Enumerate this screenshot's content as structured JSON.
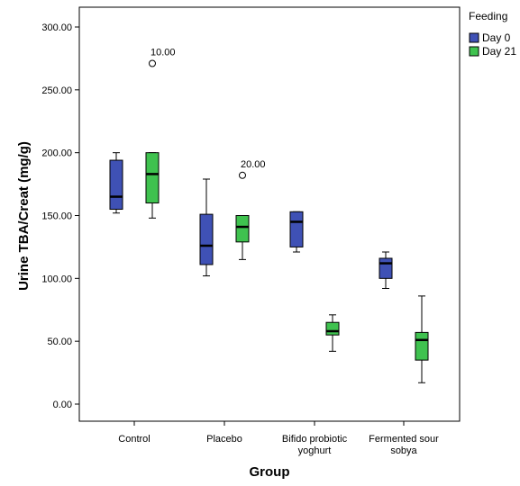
{
  "chart_data": {
    "type": "boxplot",
    "xlabel": "Group",
    "ylabel": "Urine TBA/Creat (mg/g)",
    "ylim": [
      -20,
      320
    ],
    "yticks": [
      "0.00",
      "50.00",
      "100.00",
      "150.00",
      "200.00",
      "250.00",
      "300.00"
    ],
    "ytick_values": [
      0,
      50,
      100,
      150,
      200,
      250,
      300
    ],
    "categories": [
      [
        "Control"
      ],
      [
        "Placebo"
      ],
      [
        "Bifido probiotic",
        "yoghurt"
      ],
      [
        "Fermented sour",
        "sobya"
      ]
    ],
    "legend": {
      "title": "Feeding",
      "placement": "top-right"
    },
    "series": [
      {
        "name": "Day 0",
        "color": "#3f51b5",
        "boxes": [
          {
            "min": 152,
            "q1": 155,
            "median": 165,
            "q3": 194,
            "max": 200
          },
          {
            "min": 102,
            "q1": 111,
            "median": 126,
            "q3": 151,
            "max": 179
          },
          {
            "min": 121,
            "q1": 125,
            "median": 145,
            "q3": 153,
            "max": 153
          },
          {
            "min": 92,
            "q1": 100,
            "median": 112,
            "q3": 116,
            "max": 121
          }
        ]
      },
      {
        "name": "Day 21",
        "color": "#3fc24f",
        "boxes": [
          {
            "min": 148,
            "q1": 160,
            "median": 183,
            "q3": 200,
            "max": 200
          },
          {
            "min": 115,
            "q1": 129,
            "median": 141,
            "q3": 150,
            "max": 150
          },
          {
            "min": 42,
            "q1": 55,
            "median": 58,
            "q3": 65,
            "max": 71
          },
          {
            "min": 17,
            "q1": 35,
            "median": 51,
            "q3": 57,
            "max": 86
          }
        ]
      }
    ],
    "outliers": [
      {
        "category_index": 0,
        "series_index": 1,
        "value": 271,
        "label": "10.00"
      },
      {
        "category_index": 1,
        "series_index": 1,
        "value": 182,
        "label": "20.00"
      }
    ]
  }
}
